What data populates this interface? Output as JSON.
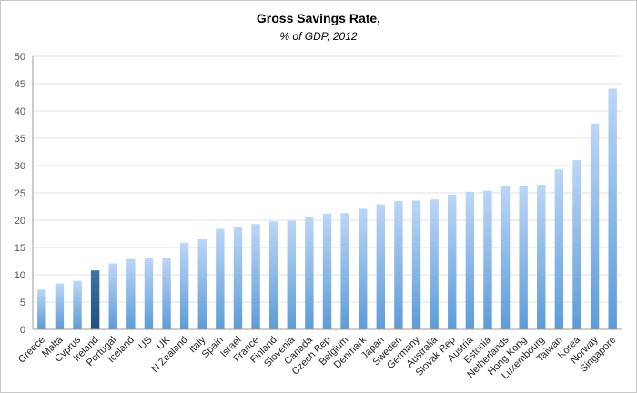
{
  "chart_data": {
    "type": "bar",
    "title": "Gross Savings Rate,",
    "subtitle": "% of GDP, 2012",
    "xlabel": "",
    "ylabel": "",
    "ylim": [
      0,
      50
    ],
    "yticks": [
      0,
      5,
      10,
      15,
      20,
      25,
      30,
      35,
      40,
      45,
      50
    ],
    "grid": true,
    "legend": "none",
    "categories": [
      "Greece",
      "Malta",
      "Cyprus",
      "Ireland",
      "Portugal",
      "Iceland",
      "US",
      "UK",
      "N Zealand",
      "Italy",
      "Spain",
      "Israel",
      "France",
      "Finland",
      "Slovenia",
      "Canada",
      "Czech Rep",
      "Belgium",
      "Denmark",
      "Japan",
      "Sweden",
      "Germany",
      "Australia",
      "Slovak Rep",
      "Austria",
      "Estonia",
      "Netherlands",
      "Hong Kong",
      "Luxembourg",
      "Taiwan",
      "Korea",
      "Norway",
      "Singapore"
    ],
    "values": [
      7.3,
      8.4,
      8.9,
      10.8,
      12.1,
      12.9,
      13.0,
      13.0,
      15.9,
      16.5,
      18.4,
      18.8,
      19.3,
      19.8,
      19.9,
      20.5,
      21.2,
      21.3,
      22.1,
      22.9,
      23.5,
      23.6,
      23.8,
      24.7,
      25.2,
      25.4,
      26.2,
      26.2,
      26.5,
      29.3,
      31.0,
      37.7,
      44.1
    ],
    "highlight_category": "Ireland",
    "colors": {
      "bar_top": "#bcd6f6",
      "bar_bottom": "#5d9cd8",
      "highlight_top": "#3e73a8",
      "highlight_bottom": "#1f4f80",
      "grid": "#e0e0e0",
      "axis": "#999999"
    }
  }
}
